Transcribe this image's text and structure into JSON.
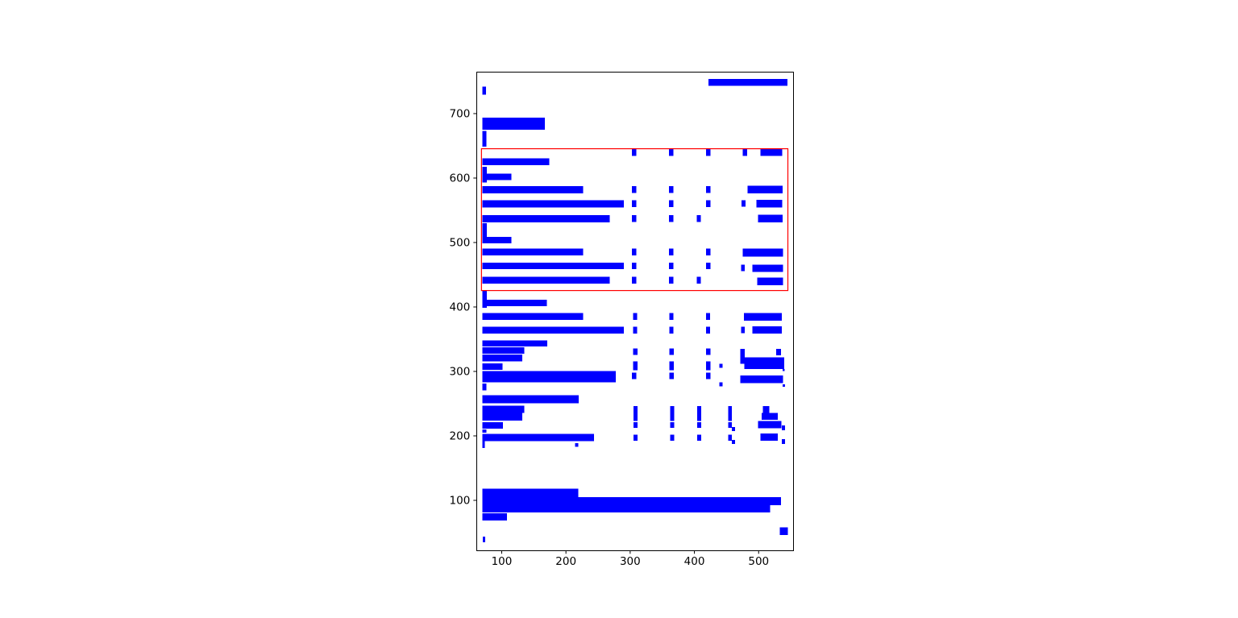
{
  "figure": {
    "background": "#ffffff",
    "bar_color": "#0000ff",
    "axis_color": "#000000",
    "tick_label_color": "#000000"
  },
  "chart_data": {
    "type": "bar",
    "subtype": "rectangle-spans (bounding-box plot with red region highlight)",
    "title": "",
    "xlabel": "",
    "ylabel": "",
    "grid": false,
    "legend": null,
    "xlim": [
      60.9,
      554.0
    ],
    "ylim": [
      22.1,
      764.1
    ],
    "x_ticks": [
      100,
      200,
      300,
      400,
      500
    ],
    "y_ticks": [
      100,
      200,
      300,
      400,
      500,
      600,
      700
    ],
    "highlight_box": {
      "x": 68.5,
      "y": 425.5,
      "w": 477.0,
      "h": 220.0,
      "color": "#ff0000"
    },
    "rects": [
      [
        422,
        743,
        123,
        10.5
      ],
      [
        70,
        729.5,
        5.5,
        12.5
      ],
      [
        70,
        675,
        97,
        19
      ],
      [
        70,
        649,
        6,
        24
      ],
      [
        302.5,
        634.5,
        7,
        10.5
      ],
      [
        360.5,
        634.5,
        7,
        10.5
      ],
      [
        418,
        634.5,
        7,
        10.5
      ],
      [
        475.5,
        634.5,
        6.5,
        10.5
      ],
      [
        502.5,
        634.5,
        34,
        11
      ],
      [
        70,
        620,
        104,
        10.5
      ],
      [
        70,
        593,
        7,
        24.5
      ],
      [
        77,
        597,
        38,
        10
      ],
      [
        70,
        576.5,
        157,
        11
      ],
      [
        302.5,
        577,
        7,
        10.5
      ],
      [
        360.5,
        577,
        7,
        10.5
      ],
      [
        418,
        577,
        7,
        10.5
      ],
      [
        483,
        576.5,
        54,
        11.5
      ],
      [
        70,
        554.5,
        220,
        11
      ],
      [
        302.5,
        555,
        7,
        10.5
      ],
      [
        360.5,
        555,
        7,
        10.5
      ],
      [
        418,
        555,
        7,
        10.5
      ],
      [
        473.5,
        555.5,
        6,
        10
      ],
      [
        496.5,
        554.5,
        40,
        11.5
      ],
      [
        70,
        531.5,
        198,
        11
      ],
      [
        302.5,
        532,
        7,
        10.5
      ],
      [
        360.5,
        532,
        7,
        10.5
      ],
      [
        403.5,
        532,
        6.5,
        10.5
      ],
      [
        499,
        531.5,
        38,
        11.5
      ],
      [
        70,
        499,
        7,
        31
      ],
      [
        77,
        499,
        38,
        9.5
      ],
      [
        70,
        480,
        157,
        10.5
      ],
      [
        302.5,
        480,
        7,
        10.5
      ],
      [
        360.5,
        480,
        7,
        10.5
      ],
      [
        418,
        480,
        7,
        10.5
      ],
      [
        475.5,
        478,
        62.5,
        12.5
      ],
      [
        70,
        458.5,
        220,
        10.5
      ],
      [
        302.5,
        458.5,
        7,
        10.5
      ],
      [
        360.5,
        458.5,
        7,
        10.5
      ],
      [
        418,
        458.5,
        7,
        10.5
      ],
      [
        472.5,
        455.5,
        6,
        10
      ],
      [
        490,
        454.5,
        48,
        11
      ],
      [
        70,
        436.5,
        198,
        10.5
      ],
      [
        302.5,
        436.5,
        7,
        10.5
      ],
      [
        360.5,
        436.5,
        7,
        10.5
      ],
      [
        403.5,
        436.5,
        6.5,
        10.5
      ],
      [
        497.5,
        433.5,
        40.5,
        12
      ],
      [
        70,
        399,
        7,
        26
      ],
      [
        77,
        401,
        93,
        10
      ],
      [
        70,
        380,
        157,
        10.5
      ],
      [
        304.5,
        380,
        6.5,
        10.5
      ],
      [
        361,
        380,
        6.5,
        10.5
      ],
      [
        418,
        380,
        6.5,
        10.5
      ],
      [
        477,
        379,
        59,
        11.5
      ],
      [
        70,
        358.5,
        220,
        11
      ],
      [
        304.5,
        359,
        6.5,
        10.5
      ],
      [
        361,
        359,
        6.5,
        10.5
      ],
      [
        418,
        359,
        6.5,
        10.5
      ],
      [
        472.5,
        359.5,
        6,
        10
      ],
      [
        490,
        358.5,
        46,
        11.5
      ],
      [
        70,
        338.5,
        101,
        9.5
      ],
      [
        70,
        327.5,
        65,
        10
      ],
      [
        70,
        315.5,
        62,
        10.5
      ],
      [
        70,
        302.5,
        31.5,
        10
      ],
      [
        304.5,
        325.5,
        7,
        10
      ],
      [
        361,
        325.5,
        7,
        10
      ],
      [
        418,
        325.5,
        7,
        10
      ],
      [
        304.5,
        302,
        7,
        13.5
      ],
      [
        361,
        302,
        7,
        13.5
      ],
      [
        418,
        302,
        7,
        13.5
      ],
      [
        471.5,
        321.5,
        7,
        13.5
      ],
      [
        527,
        325,
        7.5,
        10
      ],
      [
        471.5,
        312,
        68.5,
        10
      ],
      [
        477.5,
        303.5,
        62.5,
        8.5
      ],
      [
        439,
        305.5,
        5,
        6.5
      ],
      [
        537,
        300.5,
        3.5,
        3.5
      ],
      [
        70,
        283,
        207.5,
        17.5
      ],
      [
        302.5,
        288,
        7,
        10
      ],
      [
        361,
        288,
        7,
        10
      ],
      [
        418,
        288,
        7,
        10
      ],
      [
        471.5,
        282,
        66.5,
        11.5
      ],
      [
        439,
        277,
        5,
        6
      ],
      [
        537,
        276.5,
        4,
        3.5
      ],
      [
        70,
        270.5,
        6,
        10.5
      ],
      [
        70,
        250.5,
        150,
        12.5
      ],
      [
        70,
        235.5,
        65,
        11.5
      ],
      [
        70,
        224,
        62,
        11.5
      ],
      [
        70,
        211.5,
        32,
        9.5
      ],
      [
        70,
        205,
        6,
        5
      ],
      [
        70,
        192,
        174,
        11
      ],
      [
        70,
        181,
        3.5,
        11
      ],
      [
        214.5,
        183,
        4.5,
        5.5
      ],
      [
        305,
        223,
        6.5,
        23
      ],
      [
        362.5,
        223,
        6,
        23
      ],
      [
        404.5,
        223,
        6,
        23
      ],
      [
        452.5,
        223,
        6,
        23
      ],
      [
        305,
        212.5,
        6.5,
        9
      ],
      [
        362.5,
        212.5,
        6,
        9
      ],
      [
        404.5,
        212.5,
        6,
        9
      ],
      [
        452.5,
        212.5,
        6,
        9
      ],
      [
        458.5,
        207.5,
        4.5,
        6
      ],
      [
        305,
        192.5,
        6.5,
        9.5
      ],
      [
        362.5,
        192.5,
        6,
        9.5
      ],
      [
        404.5,
        192.5,
        6,
        9.5
      ],
      [
        452.5,
        192.5,
        6,
        9.5
      ],
      [
        458.5,
        187.5,
        4.5,
        6.5
      ],
      [
        506.5,
        235.5,
        10,
        11
      ],
      [
        504.5,
        225,
        25.5,
        10.5
      ],
      [
        499,
        212,
        36.5,
        11
      ],
      [
        536,
        209,
        5,
        7.5
      ],
      [
        502.5,
        192.5,
        27.5,
        11
      ],
      [
        536,
        187.5,
        5,
        7.5
      ],
      [
        70,
        105,
        149,
        13
      ],
      [
        70,
        92.5,
        465,
        12.5
      ],
      [
        70,
        81,
        448,
        11.5
      ],
      [
        70,
        69,
        38,
        11
      ],
      [
        70.5,
        35,
        4,
        9
      ],
      [
        533,
        46,
        12.5,
        12
      ]
    ]
  }
}
